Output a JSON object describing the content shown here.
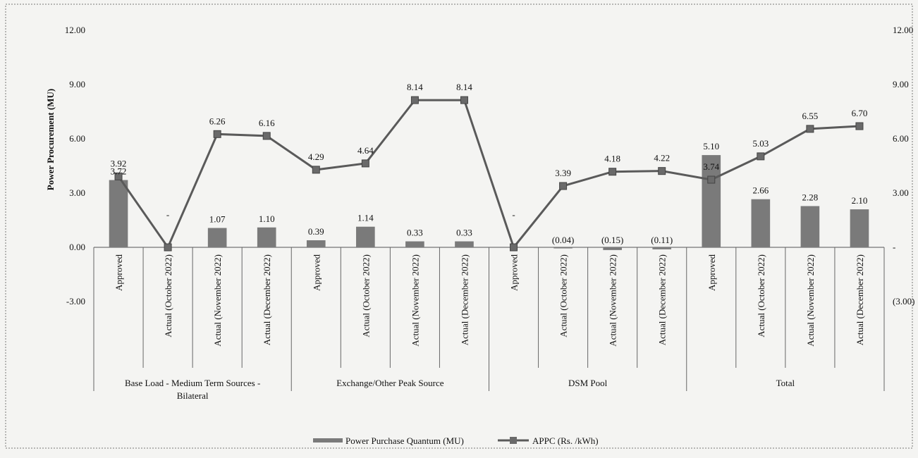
{
  "chart_data": {
    "type": "bar",
    "ylabel": "Power Procurement  (MU)",
    "ylim": [
      -3,
      12
    ],
    "left_ticks": [
      "12.00",
      "9.00",
      "6.00",
      "3.00",
      "0.00",
      "-3.00"
    ],
    "right_ticks": [
      "12.00",
      "9.00",
      "6.00",
      "3.00",
      "-",
      "(3.00)"
    ],
    "groups": [
      "Base Load - Medium Term Sources - Bilateral",
      "Exchange/Other Peak Source",
      "DSM Pool",
      "Total"
    ],
    "categories": [
      "Approved",
      "Actual (October 2022)",
      "Actual (November 2022)",
      "Actual (December 2022)",
      "Approved",
      "Actual (October 2022)",
      "Actual (November 2022)",
      "Actual (December 2022)",
      "Approved",
      "Actual (October 2022)",
      "Actual (November 2022)",
      "Actual (December 2022)",
      "Approved",
      "Actual (October 2022)",
      "Actual (November 2022)",
      "Actual (December 2022)"
    ],
    "series": [
      {
        "name": "Power Purchase Quantum (MU)",
        "type": "bar",
        "values": [
          3.72,
          0,
          1.07,
          1.1,
          0.39,
          1.14,
          0.33,
          0.33,
          0,
          -0.04,
          -0.15,
          -0.11,
          5.1,
          2.66,
          2.28,
          2.1
        ],
        "labels": [
          "3.72",
          "-",
          "1.07",
          "1.10",
          "0.39",
          "1.14",
          "0.33",
          "0.33",
          "-",
          "(0.04)",
          "(0.15)",
          "(0.11)",
          "5.10",
          "2.66",
          "2.28",
          "2.10"
        ]
      },
      {
        "name": "APPC (Rs. /kWh)",
        "type": "line",
        "values": [
          3.92,
          0,
          6.26,
          6.16,
          4.29,
          4.64,
          8.14,
          8.14,
          0,
          3.39,
          4.18,
          4.22,
          3.74,
          5.03,
          6.55,
          6.7
        ],
        "labels": [
          "3.92",
          "",
          "6.26",
          "6.16",
          "4.29",
          "4.64",
          "8.14",
          "8.14",
          "",
          "3.39",
          "4.18",
          "4.22",
          "3.74",
          "5.03",
          "6.55",
          "6.70"
        ]
      }
    ],
    "legend_position": "bottom-center",
    "grid": false
  }
}
